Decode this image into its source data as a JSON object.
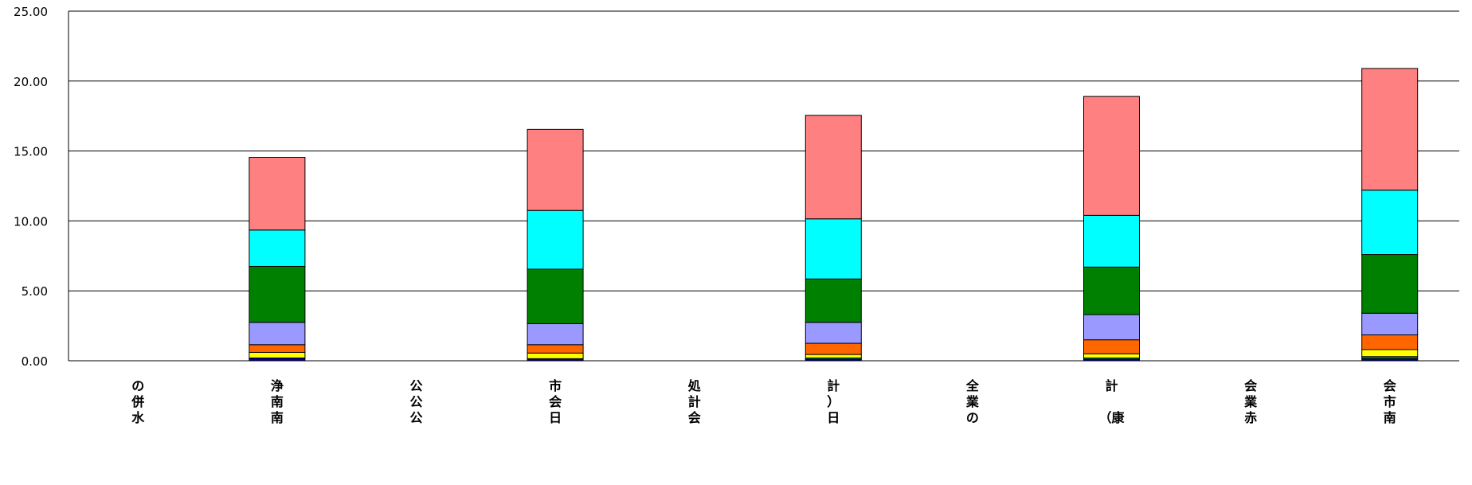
{
  "chart_data": {
    "type": "bar",
    "stacked": true,
    "ylim": [
      0,
      25
    ],
    "yticks": [
      "0.00",
      "5.00",
      "10.00",
      "15.00",
      "20.00",
      "25.00"
    ],
    "grid": true,
    "categories": [
      [
        "の",
        "併",
        "水"
      ],
      [
        "浄",
        "南",
        "南"
      ],
      [
        "公",
        "公",
        "公"
      ],
      [
        "市",
        "会",
        "日"
      ],
      [
        "処",
        "計",
        "会"
      ],
      [
        "計",
        "）",
        "日"
      ],
      [
        "全",
        "業",
        "の"
      ],
      [
        "計",
        "",
        "（康"
      ],
      [
        "会",
        "業",
        "赤"
      ],
      [
        "会",
        "市",
        "南"
      ]
    ],
    "series_colors": [
      "#000099",
      "#008080",
      "#ffff00",
      "#ff6600",
      "#9999ff",
      "#008000",
      "#00ffff",
      "#ff8080"
    ],
    "series": [
      {
        "values": [
          0,
          0.2,
          0,
          0.15,
          0,
          0.1,
          0,
          0.1,
          0,
          0.15
        ]
      },
      {
        "values": [
          0,
          0.0,
          0,
          0.0,
          0,
          0.1,
          0,
          0.1,
          0,
          0.15
        ]
      },
      {
        "values": [
          0,
          0.4,
          0,
          0.4,
          0,
          0.25,
          0,
          0.3,
          0,
          0.5
        ]
      },
      {
        "values": [
          0,
          0.55,
          0,
          0.6,
          0,
          0.8,
          0,
          1.0,
          0,
          1.05
        ]
      },
      {
        "values": [
          0,
          1.6,
          0,
          1.5,
          0,
          1.5,
          0,
          1.8,
          0,
          1.55
        ]
      },
      {
        "values": [
          0,
          4.0,
          0,
          3.9,
          0,
          3.1,
          0,
          3.4,
          0,
          4.2
        ]
      },
      {
        "values": [
          0,
          2.6,
          0,
          4.2,
          0,
          4.3,
          0,
          3.7,
          0,
          4.6
        ]
      },
      {
        "values": [
          0,
          5.2,
          0,
          5.8,
          0,
          7.4,
          0,
          8.5,
          0,
          8.7
        ]
      }
    ]
  }
}
